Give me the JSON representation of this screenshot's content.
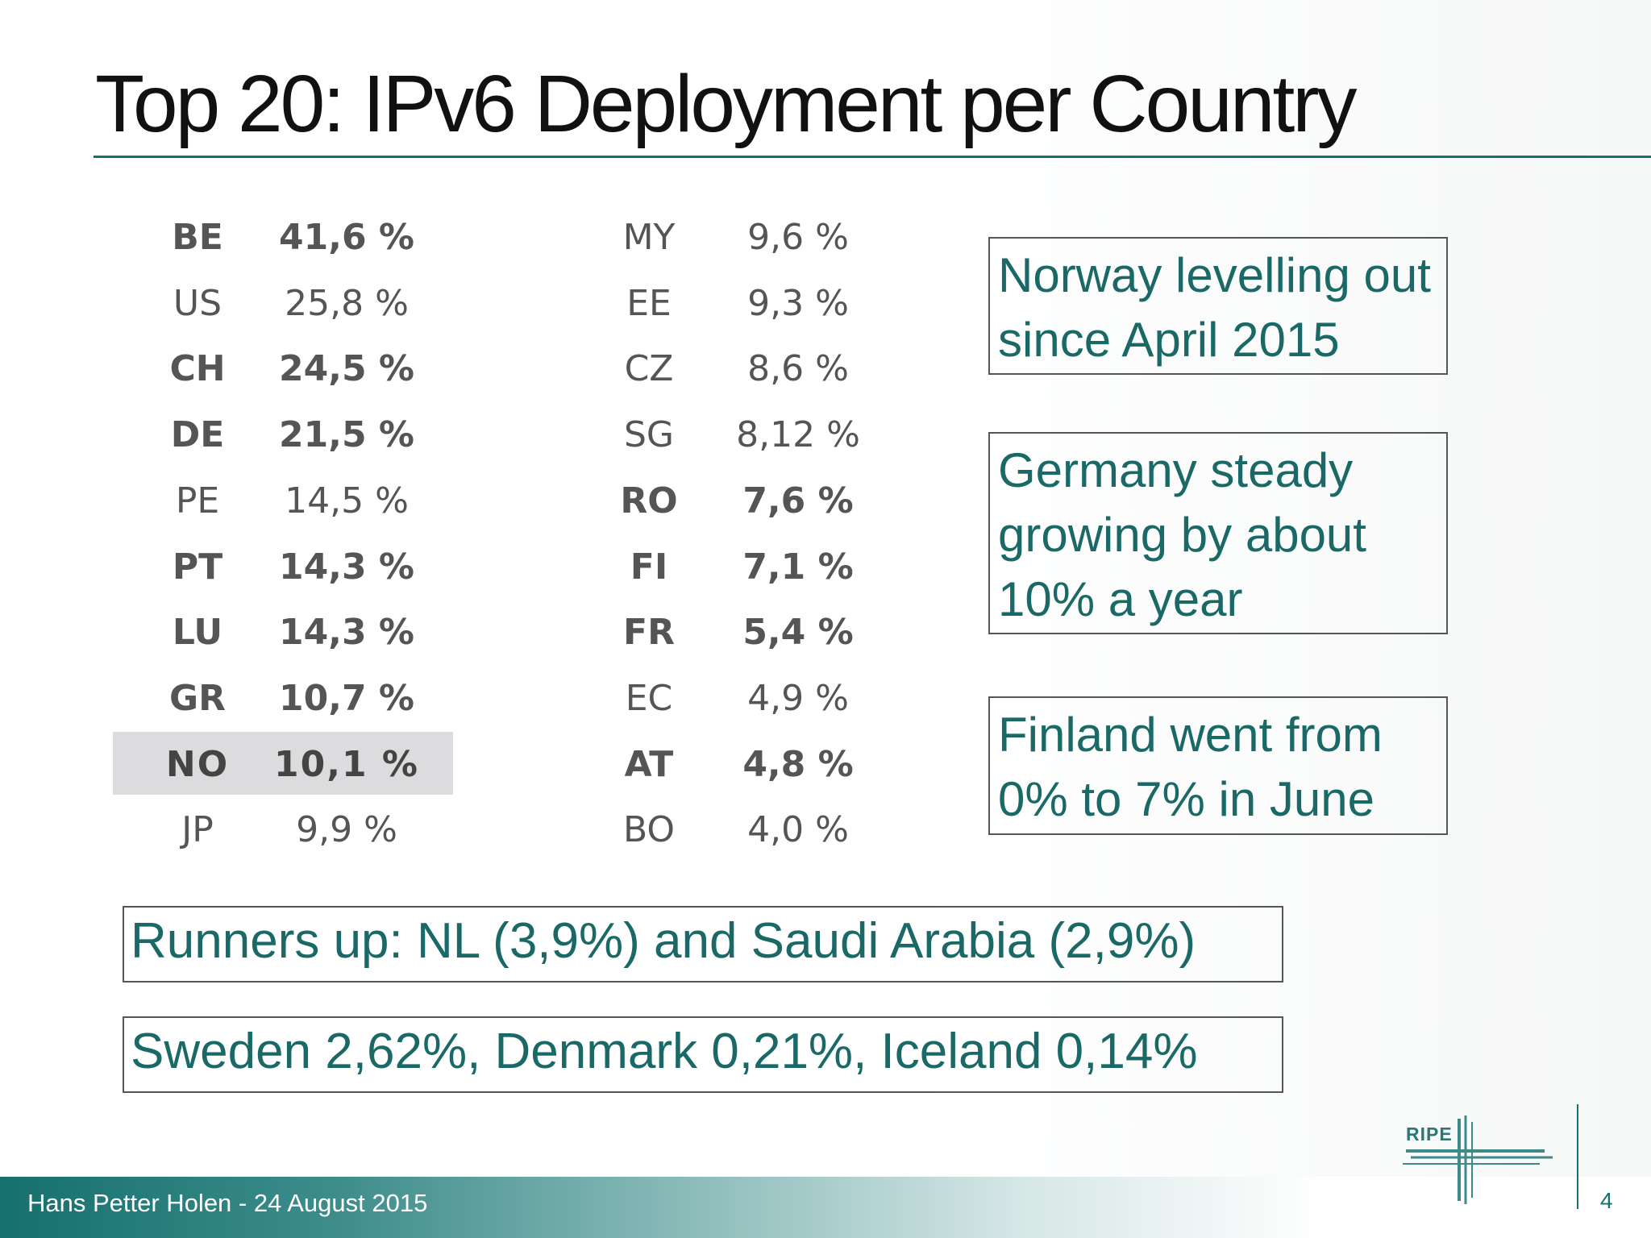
{
  "title": "Top 20: IPv6 Deployment per Country",
  "table": {
    "left": [
      {
        "code": "BE",
        "value": "41,6 %",
        "bold": true
      },
      {
        "code": "US",
        "value": "25,8 %",
        "bold": false
      },
      {
        "code": "CH",
        "value": "24,5 %",
        "bold": true
      },
      {
        "code": "DE",
        "value": "21,5 %",
        "bold": true
      },
      {
        "code": "PE",
        "value": "14,5 %",
        "bold": false
      },
      {
        "code": "PT",
        "value": "14,3 %",
        "bold": true
      },
      {
        "code": "LU",
        "value": "14,3 %",
        "bold": true
      },
      {
        "code": "GR",
        "value": "10,7 %",
        "bold": true
      },
      {
        "code": "NO",
        "value": "10,1 %",
        "bold": true,
        "highlight": true
      },
      {
        "code": "JP",
        "value": "9,9 %",
        "bold": false
      }
    ],
    "right": [
      {
        "code": "MY",
        "value": "9,6 %",
        "bold": false
      },
      {
        "code": "EE",
        "value": "9,3 %",
        "bold": false
      },
      {
        "code": "CZ",
        "value": "8,6 %",
        "bold": false
      },
      {
        "code": "SG",
        "value": "8,12 %",
        "bold": false
      },
      {
        "code": "RO",
        "value": "7,6 %",
        "bold": true
      },
      {
        "code": "FI",
        "value": "7,1 %",
        "bold": true
      },
      {
        "code": "FR",
        "value": "5,4 %",
        "bold": true
      },
      {
        "code": "EC",
        "value": "4,9 %",
        "bold": false
      },
      {
        "code": "AT",
        "value": "4,8 %",
        "bold": true
      },
      {
        "code": "BO",
        "value": "4,0 %",
        "bold": false
      }
    ]
  },
  "notes": {
    "norway": [
      "Norway levelling out",
      "since April 2015"
    ],
    "germany": [
      "Germany steady",
      "growing by about",
      "10% a year"
    ],
    "finland": [
      "Finland went from",
      "0% to 7% in June"
    ],
    "runners_up": "Runners up: NL (3,9%) and Saudi Arabia (2,9%)",
    "nordics": "Sweden 2,62%, Denmark 0,21%, Iceland 0,14%"
  },
  "footer": {
    "author_date": "Hans Petter Holen - 24 August 2015",
    "page_number": "4",
    "logo_text": "RIPE"
  },
  "colors": {
    "accent": "#15706e",
    "note_text": "#1a6966",
    "table_text": "#555555",
    "highlight": "#dcdcde"
  }
}
